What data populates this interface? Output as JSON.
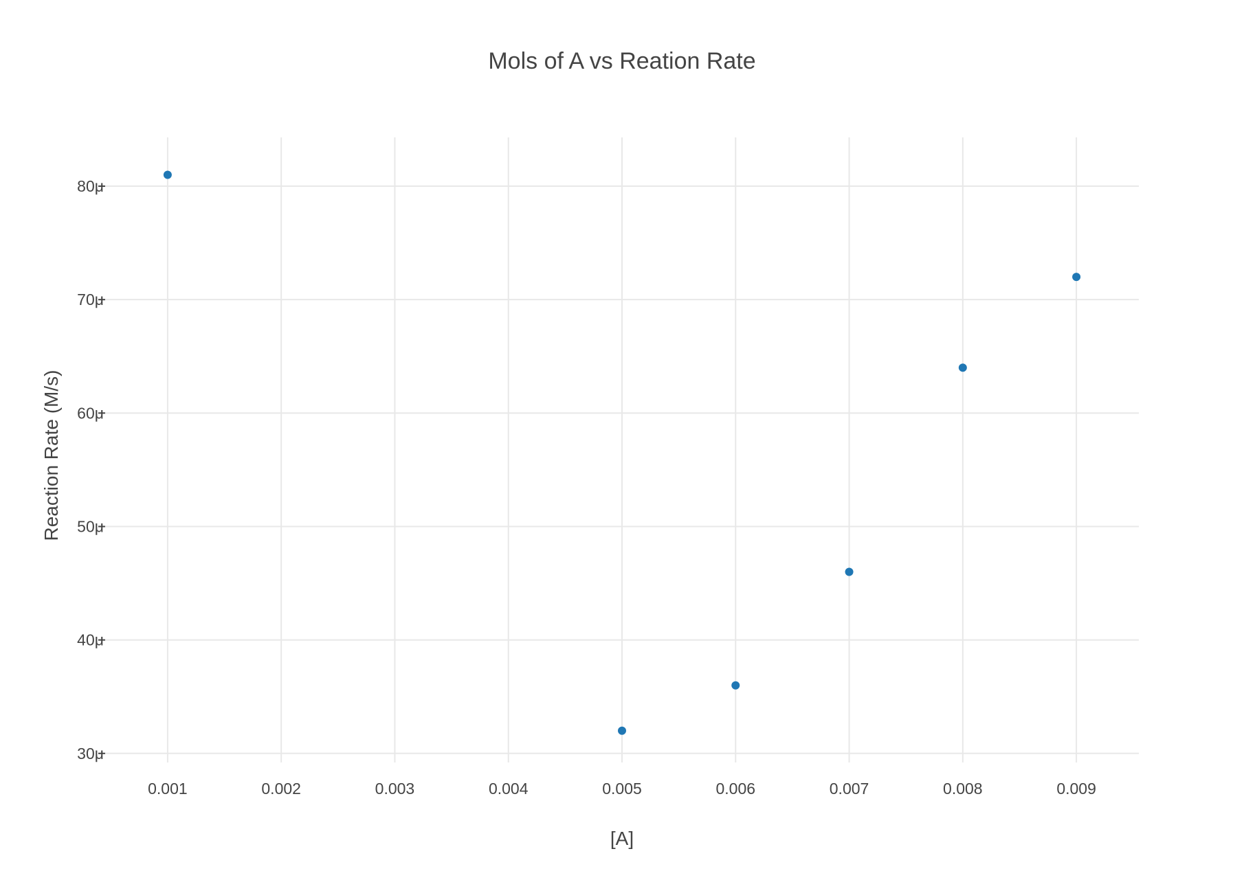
{
  "chart_data": {
    "type": "scatter",
    "title": "Mols of A vs Reation Rate",
    "xlabel": "[A]",
    "ylabel": "Reaction Rate (M/s)",
    "xlim": [
      0.00045,
      0.00955
    ],
    "ylim": [
      2.92e-05,
      8.43e-05
    ],
    "grid": true,
    "x_ticks": [
      0.001,
      0.002,
      0.003,
      0.004,
      0.005,
      0.006,
      0.007,
      0.008,
      0.009
    ],
    "x_tick_labels": [
      "0.001",
      "0.002",
      "0.003",
      "0.004",
      "0.005",
      "0.006",
      "0.007",
      "0.008",
      "0.009"
    ],
    "y_ticks": [
      3e-05,
      4e-05,
      5e-05,
      6e-05,
      7e-05,
      8e-05
    ],
    "y_tick_labels": [
      "30μ",
      "40μ",
      "50μ",
      "60μ",
      "70μ",
      "80μ"
    ],
    "series": [
      {
        "x": [
          0.001,
          0.005,
          0.006,
          0.007,
          0.008,
          0.009
        ],
        "y": [
          8.1e-05,
          3.2e-05,
          3.6e-05,
          4.6e-05,
          6.4e-05,
          7.2e-05
        ],
        "color": "#1f77b4"
      }
    ]
  }
}
